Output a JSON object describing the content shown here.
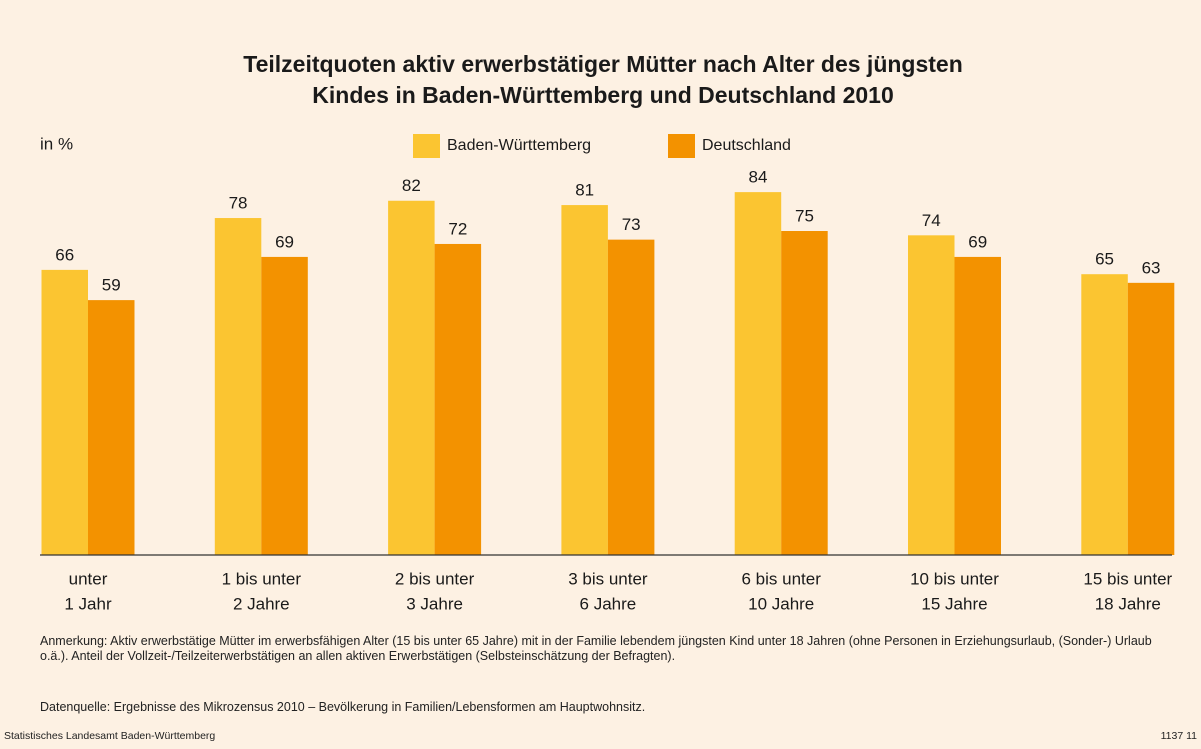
{
  "chart_data": {
    "type": "bar",
    "title": [
      "Teilzeitquoten aktiv erwerbstätiger Mütter nach Alter des jüngsten",
      "Kindes in Baden-Württemberg und Deutschland 2010"
    ],
    "y_label": "in %",
    "categories": [
      [
        "unter",
        "1 Jahr"
      ],
      [
        "1 bis unter",
        "2 Jahre"
      ],
      [
        "2 bis unter",
        "3 Jahre"
      ],
      [
        "3 bis unter",
        "6 Jahre"
      ],
      [
        "6 bis unter",
        "10 Jahre"
      ],
      [
        "10 bis unter",
        "15 Jahre"
      ],
      [
        "15 bis unter",
        "18 Jahre"
      ]
    ],
    "series": [
      {
        "name": "Baden-Württemberg",
        "color": "#fbc531",
        "values": [
          66,
          78,
          82,
          81,
          84,
          74,
          65
        ]
      },
      {
        "name": "Deutschland",
        "color": "#f39200",
        "values": [
          59,
          69,
          72,
          73,
          75,
          69,
          63
        ]
      }
    ],
    "ylim": [
      0,
      100
    ],
    "legend": "top",
    "note": "Anmerkung:  Aktiv erwerbstätige Mütter im erwerbsfähigen Alter (15 bis unter 65 Jahre) mit in der Familie lebendem jüngsten Kind unter 18 Jahren (ohne Personen in Erziehungsurlaub, (Sonder-) Urlaub o.ä.). Anteil der Vollzeit-/Teilzeiterwerbstätigen an allen aktiven Erwerbstätigen (Selbsteinschätzung der Befragten).",
    "data_source": "Datenquelle: Ergebnisse des Mikrozensus 2010 – Bevölkerung in Familien/Lebensformen am Hauptwohnsitz.",
    "publisher": "Statistisches Landesamt Baden-Württemberg",
    "code": "1137 11"
  }
}
